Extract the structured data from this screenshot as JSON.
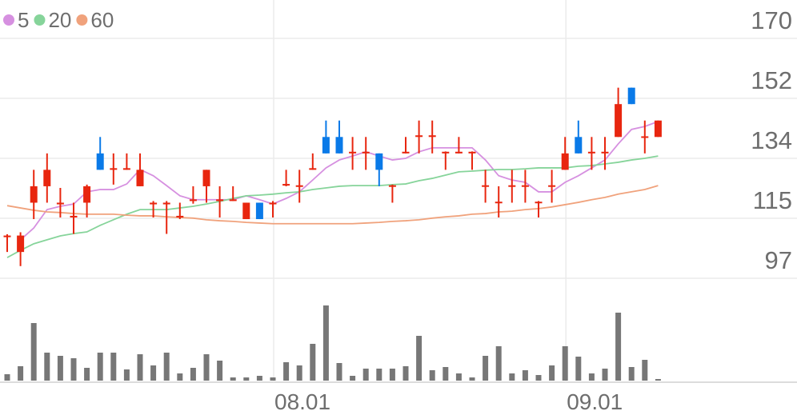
{
  "chart_data": {
    "type": "candlestick",
    "categories": [
      null,
      null,
      null,
      null,
      null,
      null,
      null,
      null,
      null,
      null,
      null,
      null,
      null,
      null,
      null,
      null,
      null,
      null,
      null,
      null,
      "08.01",
      null,
      null,
      null,
      null,
      null,
      null,
      null,
      null,
      null,
      null,
      null,
      null,
      null,
      null,
      null,
      null,
      null,
      null,
      null,
      null,
      null,
      "09.01",
      null,
      null,
      null,
      null,
      null,
      null,
      null
    ],
    "open": [
      109.5,
      105,
      120,
      125,
      119.5,
      115.5,
      120,
      135,
      130,
      130,
      125,
      119.5,
      119.5,
      115.5,
      120.5,
      125,
      120.5,
      120.5,
      115,
      120,
      119.5,
      125.2,
      124.8,
      130,
      140,
      140,
      135,
      135,
      135,
      125,
      135,
      140,
      140,
      135,
      135,
      135,
      125,
      120,
      125,
      125,
      120,
      125,
      130,
      140,
      135,
      135,
      140,
      155,
      139.8,
      140
    ],
    "high": [
      110.4,
      111,
      130,
      135,
      124.5,
      120,
      125.5,
      140,
      135,
      135,
      135,
      120.5,
      120.5,
      120,
      125,
      130,
      125,
      125,
      120,
      120,
      120.5,
      130,
      130,
      135,
      145,
      145,
      140,
      140,
      135,
      125.5,
      140,
      145,
      145,
      135.6,
      140,
      135.6,
      130,
      125,
      130,
      130,
      120.5,
      130,
      140,
      145,
      140,
      140,
      155,
      155,
      145,
      145
    ],
    "low": [
      105,
      100.7,
      115,
      120,
      115.5,
      110.5,
      115.5,
      130,
      125.5,
      130,
      125,
      115.5,
      110.5,
      115,
      119.7,
      120,
      115.5,
      120.5,
      115,
      115,
      115.5,
      125,
      120,
      130,
      135,
      135,
      130,
      130,
      125,
      120,
      135,
      135,
      135,
      130,
      135,
      130,
      120,
      115.5,
      120,
      120,
      115.5,
      120,
      130,
      135,
      130,
      130,
      140,
      150,
      135,
      140
    ],
    "close": [
      110,
      110,
      125,
      130,
      120,
      116,
      125,
      130,
      130.5,
      130.5,
      130,
      120,
      120,
      116,
      121,
      130,
      121,
      121,
      120,
      115,
      120,
      125.7,
      125.3,
      130.5,
      135,
      135,
      135.5,
      135.5,
      130,
      125.3,
      135.5,
      140.5,
      140.5,
      135.5,
      135.5,
      135.5,
      125.3,
      120.3,
      125.3,
      125.3,
      120.3,
      125.3,
      135,
      135,
      135.5,
      135.5,
      150,
      150,
      140.2,
      145
    ],
    "volume": [
      8,
      18,
      72,
      35,
      31,
      28,
      16,
      35,
      35,
      14,
      33,
      19,
      35,
      9,
      16,
      33,
      25,
      4,
      4,
      6,
      4,
      23,
      19,
      46,
      94,
      22,
      6,
      15,
      15,
      15,
      18,
      56,
      13,
      17,
      9,
      4,
      31,
      43,
      9,
      13,
      7,
      19,
      43,
      30,
      9,
      15,
      85,
      17,
      26,
      2
    ],
    "up_color": "#e8260f",
    "down_color": "#0a7ae8",
    "volume_color": "#777777",
    "moving_averages": [
      {
        "name": "5",
        "color": "#d690e0",
        "values": [
          null,
          108.7,
          112.3,
          117.9,
          118.9,
          119.6,
          123.3,
          124.0,
          124.0,
          125.7,
          130.1,
          128.2,
          125.2,
          122.1,
          120.9,
          120.9,
          120.9,
          120.9,
          122.1,
          120.9,
          119.6,
          121.3,
          123.3,
          126.9,
          130.6,
          133.0,
          134.2,
          135.5,
          134.2,
          133.0,
          133.5,
          135.5,
          136.7,
          136.7,
          136.7,
          136.7,
          133.0,
          128.2,
          126.9,
          126.2,
          123.3,
          123.3,
          126.2,
          128.2,
          130.6,
          133.0,
          137.9,
          142.3,
          143.2,
          144.7
        ]
      },
      {
        "name": "20",
        "color": "#86d49a",
        "values": [
          103.3,
          105.5,
          107.5,
          108.7,
          109.9,
          110.6,
          111.1,
          113.1,
          114.8,
          116.5,
          117.9,
          117.9,
          117.9,
          118.4,
          118.9,
          119.6,
          120.4,
          121.3,
          122.1,
          122.3,
          122.6,
          123.0,
          123.3,
          124.0,
          124.5,
          125.0,
          125.2,
          125.2,
          125.2,
          125.5,
          125.7,
          126.7,
          127.4,
          128.4,
          129.4,
          129.6,
          129.9,
          130.1,
          130.1,
          130.3,
          130.6,
          130.6,
          130.6,
          131.1,
          131.3,
          131.8,
          132.3,
          133.0,
          133.5,
          134.2
        ]
      },
      {
        "name": "60",
        "color": "#f0a27c",
        "values": [
          119.1,
          118.4,
          117.7,
          117.2,
          117.0,
          116.7,
          116.5,
          116.5,
          116.5,
          116.2,
          116.0,
          116.0,
          115.7,
          115.5,
          115.3,
          114.8,
          114.5,
          114.3,
          114.0,
          113.8,
          113.6,
          113.6,
          113.6,
          113.6,
          113.6,
          113.6,
          113.6,
          113.8,
          114.0,
          114.3,
          114.5,
          114.8,
          115.3,
          115.7,
          116.0,
          116.5,
          116.7,
          117.2,
          117.4,
          117.9,
          118.2,
          118.7,
          119.4,
          120.1,
          120.9,
          121.6,
          122.6,
          123.3,
          124.0,
          125.2
        ]
      }
    ],
    "ylim": [
      97,
      170
    ],
    "yticks": [
      {
        "value": 170,
        "label": "170"
      },
      {
        "value": 151.75,
        "label": "152"
      },
      {
        "value": 133.5,
        "label": "134"
      },
      {
        "value": 115.25,
        "label": "115"
      },
      {
        "value": 97,
        "label": "97"
      }
    ],
    "grid": true
  }
}
